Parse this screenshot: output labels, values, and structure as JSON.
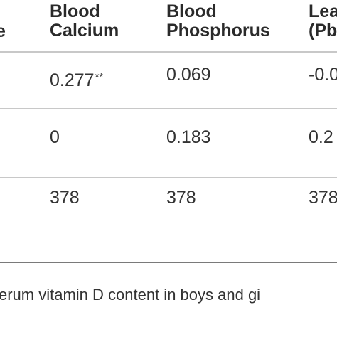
{
  "table": {
    "header": {
      "col0_fragment": "e",
      "col1": [
        "Blood",
        "Calcium"
      ],
      "col2": [
        "Blood",
        "Phosphorus"
      ],
      "col3": [
        "Lea",
        "(Pb"
      ]
    },
    "rows": [
      {
        "c1": "0.277",
        "c1_sup": "**",
        "c2": "0.069",
        "c3": "-0.0"
      },
      {
        "c1": "0",
        "c2": "0.183",
        "c3": "0.2"
      },
      {
        "c1": "378",
        "c2": "378",
        "c3": "378"
      }
    ]
  },
  "caption": "erum vitamin D content in boys and gi"
}
